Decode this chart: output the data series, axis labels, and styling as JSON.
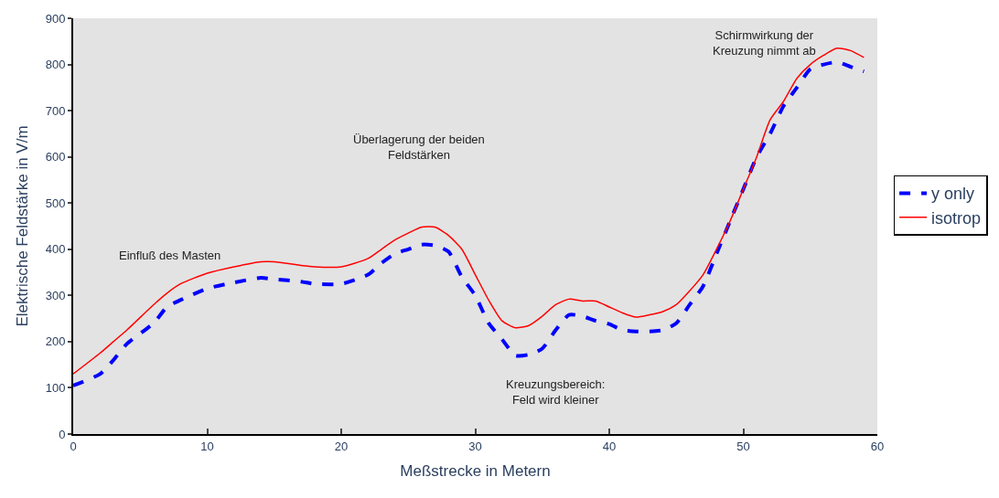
{
  "chart_data": {
    "type": "line",
    "xlabel": "Meßstrecke in Metern",
    "ylabel": "Elektrische Feldstärke in V/m",
    "x": [
      0,
      2,
      3,
      4,
      6,
      7,
      8,
      10,
      12,
      14,
      15,
      17,
      18,
      20,
      22,
      23,
      24,
      25,
      26,
      27,
      28,
      29,
      30,
      31,
      32,
      33,
      34,
      35,
      36,
      37,
      38,
      39,
      40,
      41,
      42,
      43,
      44,
      45,
      46,
      47,
      48,
      49,
      50,
      51,
      52,
      53,
      54,
      55,
      56,
      57,
      58,
      59
    ],
    "series": [
      {
        "name": "y only",
        "color": "#0000ff",
        "line_style": "dashed",
        "values": [
          105,
          130,
          160,
          195,
          240,
          275,
          290,
          315,
          328,
          338,
          335,
          330,
          325,
          325,
          345,
          370,
          390,
          400,
          410,
          408,
          395,
          340,
          300,
          240,
          205,
          170,
          172,
          185,
          225,
          258,
          255,
          245,
          238,
          225,
          222,
          222,
          225,
          240,
          280,
          320,
          390,
          460,
          530,
          600,
          650,
          710,
          750,
          790,
          800,
          805,
          795,
          785
        ]
      },
      {
        "name": "isotrop",
        "color": "#ff0000",
        "line_style": "solid",
        "values": [
          130,
          175,
          200,
          225,
          280,
          305,
          325,
          348,
          362,
          373,
          373,
          365,
          362,
          362,
          380,
          400,
          420,
          435,
          448,
          448,
          430,
          400,
          345,
          290,
          245,
          230,
          235,
          255,
          280,
          292,
          288,
          288,
          275,
          262,
          253,
          258,
          265,
          280,
          310,
          345,
          400,
          460,
          530,
          600,
          680,
          720,
          770,
          800,
          820,
          835,
          830,
          815
        ]
      }
    ],
    "xlim": [
      0,
      60
    ],
    "xticks": [
      0,
      10,
      20,
      30,
      40,
      50,
      60
    ],
    "ylim": [
      0,
      900
    ],
    "yticks": [
      0,
      100,
      200,
      300,
      400,
      500,
      600,
      700,
      800,
      900
    ],
    "grid": false,
    "legend": "right",
    "annotations": [
      "Einfluß des Masten",
      "Überlagerung der beiden\nFeldstärken",
      "Kreuzungsbereich:\nFeld wird kleiner",
      "Schirmwirkung der\nKreuzung nimmt ab"
    ]
  }
}
